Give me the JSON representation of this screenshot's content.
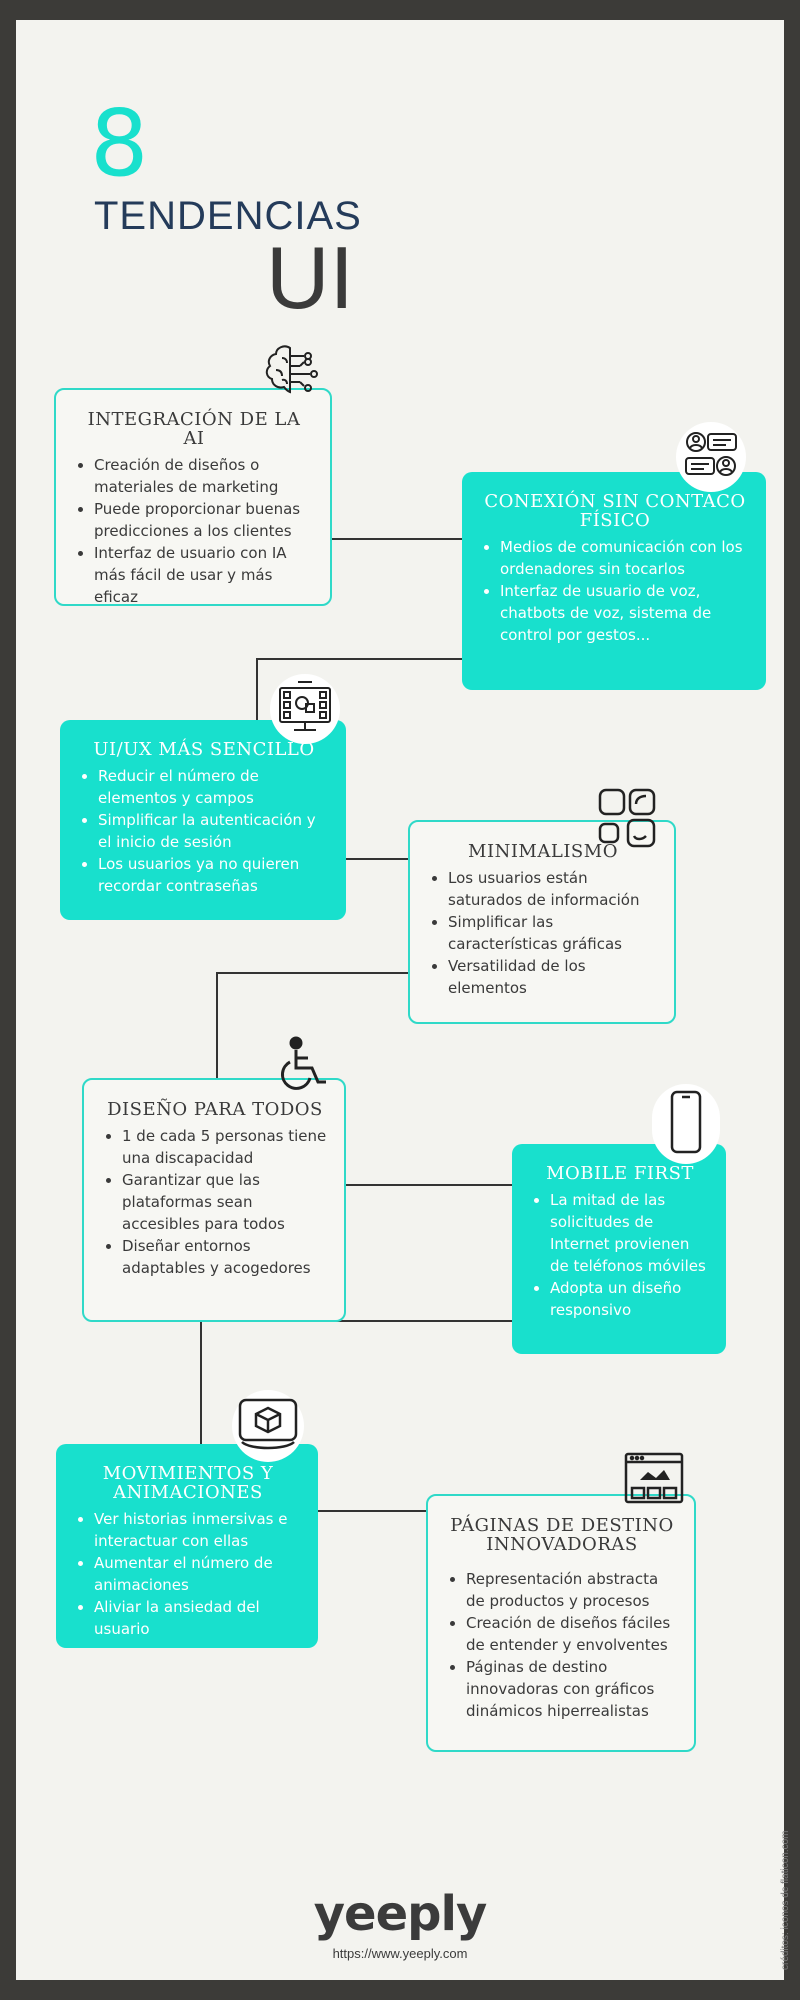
{
  "title": {
    "number": "8",
    "word": "TENDENCIAS",
    "ui": "UI"
  },
  "colors": {
    "accent": "#18e0cd",
    "text": "#3a3a3a",
    "title_blue": "#243b5a",
    "frame": "#3c3b38"
  },
  "trends": [
    {
      "title": "INTEGRACIÓN DE LA AI",
      "icon": "ai-brain-icon",
      "bullets": [
        "Creación de diseños o materiales de marketing",
        "Puede proporcionar buenas predicciones a los clientes",
        "Interfaz de usuario con IA más fácil de usar y más eficaz"
      ]
    },
    {
      "title": "CONEXIÓN SIN CONTACO FÍSICO",
      "icon": "users-chat-icon",
      "bullets": [
        "Medios de comunicación con los ordenadores sin tocarlos",
        "Interfaz de usuario de voz, chatbots de voz, sistema de control por gestos..."
      ]
    },
    {
      "title": "UI/UX MÁS SENCILLO",
      "icon": "dashboard-screen-icon",
      "bullets": [
        "Reducir el número de elementos y campos",
        "Simplificar la autenticación y el inicio de sesión",
        "Los usuarios ya no quieren recordar contraseñas"
      ]
    },
    {
      "title": "MINIMALISMO",
      "icon": "minimal-squares-icon",
      "bullets": [
        "Los usuarios están saturados de información",
        "Simplificar las características gráficas",
        "Versatilidad de los elementos"
      ]
    },
    {
      "title": "DISEÑO PARA TODOS",
      "icon": "wheelchair-icon",
      "bullets": [
        "1 de cada 5 personas tiene una discapacidad",
        "Garantizar que las plataformas sean accesibles para todos",
        "Diseñar entornos adaptables y acogedores"
      ]
    },
    {
      "title": "MOBILE FIRST",
      "icon": "smartphone-icon",
      "bullets": [
        "La mitad de las solicitudes de Internet provienen de teléfonos móviles",
        "Adopta un diseño responsivo"
      ]
    },
    {
      "title": "MOVIMIENTOS Y ANIMACIONES",
      "icon": "ar-cube-icon",
      "bullets": [
        "Ver historias inmersivas e interactuar con ellas",
        "Aumentar el número de animaciones",
        "Aliviar la ansiedad del usuario"
      ]
    },
    {
      "title": "PÁGINAS DE DESTINO INNOVADORAS",
      "icon": "landing-page-icon",
      "bullets": [
        "Representación abstracta de productos y procesos",
        "Creación de diseños fáciles de entender y envolventes",
        "Páginas de destino innovadoras con gráficos dinámicos hiperrealistas"
      ]
    }
  ],
  "footer": {
    "logo": "yeeply",
    "url": "https://www.yeeply.com",
    "credits": "créditos: iconos de flaticon.com"
  }
}
